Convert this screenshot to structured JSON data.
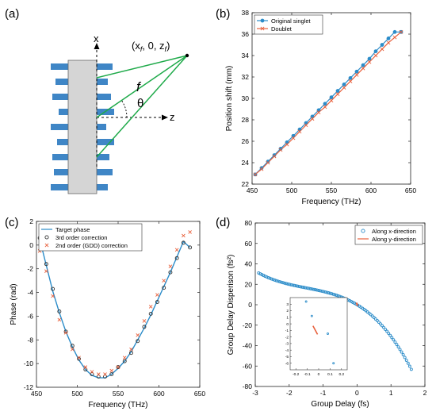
{
  "panels": {
    "a": {
      "label": "(a)",
      "axis_x": "x",
      "axis_z": "z",
      "focal_point": "(x",
      "focal_sub_f1": "f",
      "focal_mid": ", 0, z",
      "focal_sub_f2": "f",
      "focal_close": ")",
      "focal_length": "f",
      "angle": "θ"
    },
    "b": {
      "label": "(b)"
    },
    "c": {
      "label": "(c)"
    },
    "d": {
      "label": "(d)"
    }
  },
  "colors": {
    "blue": "#2b8cc9",
    "orange": "#e8603c",
    "green": "#1faa4a",
    "element_blue": "#3f86c6",
    "gray": "#d5d5d5"
  },
  "chart_data": [
    {
      "id": "b",
      "type": "line",
      "xlabel": "Frequency (THz)",
      "ylabel": "Position shift (mm)",
      "xlim": [
        450,
        650
      ],
      "ylim": [
        22,
        38
      ],
      "xticks": [
        450,
        500,
        550,
        600,
        650
      ],
      "yticks": [
        22,
        24,
        26,
        28,
        30,
        32,
        34,
        36,
        38
      ],
      "legend": "top-left",
      "grid": false,
      "series": [
        {
          "name": "Original singlet",
          "color": "#2b8cc9",
          "marker": "circle",
          "x": [
            454,
            462,
            470,
            478,
            486,
            494,
            502,
            510,
            518,
            526,
            534,
            542,
            550,
            558,
            566,
            574,
            582,
            590,
            598,
            606,
            614,
            622,
            630,
            638
          ],
          "y": [
            22.9,
            23.5,
            24.1,
            24.7,
            25.3,
            25.9,
            26.5,
            27.1,
            27.7,
            28.3,
            28.9,
            29.5,
            30.1,
            30.7,
            31.3,
            31.9,
            32.5,
            33.1,
            33.7,
            34.4,
            35.0,
            35.6,
            36.2,
            36.2
          ]
        },
        {
          "name": "Doublet",
          "color": "#e8603c",
          "marker": "x",
          "x": [
            454,
            462,
            470,
            478,
            486,
            494,
            502,
            510,
            518,
            526,
            534,
            542,
            550,
            558,
            566,
            574,
            582,
            590,
            598,
            606,
            614,
            622,
            630,
            638
          ],
          "y": [
            22.9,
            23.4,
            24.0,
            24.6,
            25.2,
            25.7,
            26.3,
            26.9,
            27.5,
            28.1,
            28.7,
            29.2,
            29.8,
            30.4,
            31.0,
            31.6,
            32.2,
            32.8,
            33.4,
            34.0,
            34.6,
            35.2,
            35.7,
            36.2
          ]
        }
      ]
    },
    {
      "id": "c",
      "type": "line",
      "xlabel": "Frequency (THz)",
      "ylabel": "Phase (rad)",
      "xlim": [
        450,
        650
      ],
      "ylim": [
        -12,
        2
      ],
      "xticks": [
        450,
        500,
        550,
        600,
        650
      ],
      "yticks": [
        -12,
        -10,
        -8,
        -6,
        -4,
        -2,
        0,
        2
      ],
      "legend": "top-left",
      "grid": false,
      "series": [
        {
          "name": "Target phase",
          "color": "#2b8cc9",
          "marker": "none",
          "x": [
            454,
            462,
            470,
            478,
            486,
            494,
            502,
            510,
            518,
            526,
            534,
            542,
            550,
            558,
            566,
            574,
            582,
            590,
            598,
            606,
            614,
            622,
            630,
            638
          ],
          "y": [
            0.5,
            -1.7,
            -3.9,
            -5.7,
            -7.3,
            -8.6,
            -9.7,
            -10.5,
            -11.0,
            -11.2,
            -11.2,
            -10.9,
            -10.4,
            -9.8,
            -9.0,
            -8.0,
            -7.0,
            -5.9,
            -4.7,
            -3.5,
            -2.3,
            -1.0,
            0.3,
            -0.2
          ]
        },
        {
          "name": "3rd order correction",
          "color": "#333333",
          "marker": "circle",
          "x": [
            454,
            462,
            470,
            478,
            486,
            494,
            502,
            510,
            518,
            526,
            534,
            542,
            550,
            558,
            566,
            574,
            582,
            590,
            598,
            606,
            614,
            622,
            630,
            638
          ],
          "y": [
            0.6,
            -1.6,
            -3.7,
            -5.6,
            -7.3,
            -8.5,
            -9.6,
            -10.5,
            -10.9,
            -11.1,
            -11.1,
            -10.9,
            -10.3,
            -9.8,
            -9.1,
            -8.1,
            -6.9,
            -5.8,
            -4.8,
            -3.6,
            -2.3,
            -1.1,
            0.2,
            -0.2
          ]
        },
        {
          "name": "2nd order (GDD) correction",
          "color": "#e8603c",
          "marker": "x",
          "x": [
            454,
            462,
            470,
            478,
            486,
            494,
            502,
            510,
            518,
            526,
            534,
            542,
            550,
            558,
            566,
            574,
            582,
            590,
            598,
            606,
            614,
            622,
            630,
            638
          ],
          "y": [
            -0.5,
            -2.2,
            -4.3,
            -6.3,
            -7.4,
            -8.8,
            -9.5,
            -10.3,
            -10.7,
            -10.9,
            -10.9,
            -10.6,
            -10.3,
            -9.5,
            -8.8,
            -7.6,
            -6.4,
            -5.2,
            -4.2,
            -3.0,
            -1.8,
            -0.4,
            0.8,
            1.1
          ]
        }
      ]
    },
    {
      "id": "d",
      "type": "scatter",
      "xlabel": "Group Delay (fs)",
      "ylabel": "Group Delay Disperison (fs²)",
      "xlim": [
        -3,
        2
      ],
      "ylim": [
        -80,
        80
      ],
      "xticks": [
        -3,
        -2,
        -1,
        0,
        1,
        2
      ],
      "yticks": [
        -80,
        -60,
        -40,
        -20,
        0,
        20,
        40,
        60,
        80
      ],
      "legend": "top-right",
      "grid": false,
      "curve_fn": "-20*x - 9*x*x - 2*x*x*x",
      "series": [
        {
          "name": "Along x-direction",
          "color": "#2b8cc9",
          "marker": "circle",
          "x_from": -2.9,
          "x_to": 1.6,
          "count": 95
        },
        {
          "name": "Along y-direction",
          "color": "#e8603c",
          "marker": "line",
          "x": [
            -0.02,
            0.02
          ],
          "y": [
            2,
            -1
          ]
        }
      ],
      "inset": {
        "xlim": [
          -0.25,
          0.25
        ],
        "ylim": [
          -7,
          4
        ],
        "xticks": [
          -0.2,
          -0.1,
          0,
          0.1,
          0.2
        ],
        "yticks": [
          -6,
          -5,
          -4,
          -3,
          -2,
          -1,
          0,
          1,
          2,
          3
        ],
        "blue_points": [
          [
            -0.11,
            3.4
          ],
          [
            -0.06,
            1.2
          ],
          [
            0.08,
            -1.5
          ],
          [
            0.13,
            -6.0
          ]
        ],
        "orange_line": [
          [
            -0.05,
            -0.3
          ],
          [
            -0.01,
            -1.6
          ]
        ]
      }
    }
  ]
}
